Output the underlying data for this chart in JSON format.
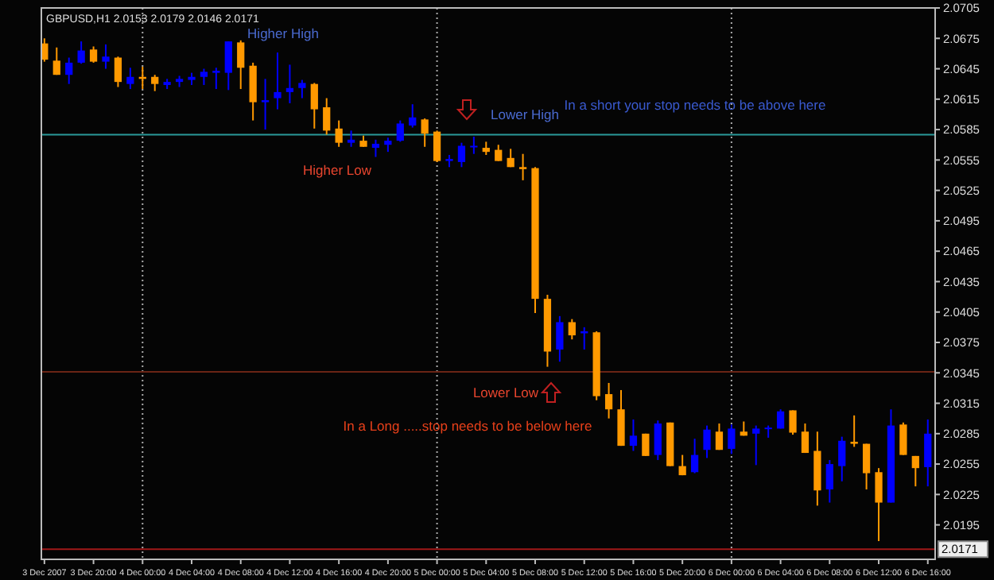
{
  "chart_data": {
    "type": "candlestick",
    "title": "GBPUSD,H1 2.0153 2.0179 2.0146 2.0171",
    "x": [
      "2007-12-03T16:00",
      "2007-12-03T17:00",
      "2007-12-03T18:00",
      "2007-12-03T19:00",
      "2007-12-03T20:00",
      "2007-12-03T21:00",
      "2007-12-03T22:00",
      "2007-12-03T23:00",
      "2007-12-04T00:00",
      "2007-12-04T01:00",
      "2007-12-04T02:00",
      "2007-12-04T03:00",
      "2007-12-04T04:00",
      "2007-12-04T05:00",
      "2007-12-04T06:00",
      "2007-12-04T07:00",
      "2007-12-04T08:00",
      "2007-12-04T09:00",
      "2007-12-04T10:00",
      "2007-12-04T11:00",
      "2007-12-04T12:00",
      "2007-12-04T13:00",
      "2007-12-04T14:00",
      "2007-12-04T15:00",
      "2007-12-04T16:00",
      "2007-12-04T17:00",
      "2007-12-04T18:00",
      "2007-12-04T19:00",
      "2007-12-04T20:00",
      "2007-12-04T21:00",
      "2007-12-04T22:00",
      "2007-12-04T23:00",
      "2007-12-05T00:00",
      "2007-12-05T01:00",
      "2007-12-05T02:00",
      "2007-12-05T03:00",
      "2007-12-05T04:00",
      "2007-12-05T05:00",
      "2007-12-05T06:00",
      "2007-12-05T07:00",
      "2007-12-05T08:00",
      "2007-12-05T09:00",
      "2007-12-05T10:00",
      "2007-12-05T11:00",
      "2007-12-05T12:00",
      "2007-12-05T13:00",
      "2007-12-05T14:00",
      "2007-12-05T15:00",
      "2007-12-05T16:00",
      "2007-12-05T17:00",
      "2007-12-05T18:00",
      "2007-12-05T19:00",
      "2007-12-05T20:00",
      "2007-12-05T21:00",
      "2007-12-05T22:00",
      "2007-12-05T23:00",
      "2007-12-06T00:00",
      "2007-12-06T01:00",
      "2007-12-06T02:00",
      "2007-12-06T03:00",
      "2007-12-06T04:00",
      "2007-12-06T05:00",
      "2007-12-06T06:00",
      "2007-12-06T07:00",
      "2007-12-06T08:00",
      "2007-12-06T09:00",
      "2007-12-06T10:00",
      "2007-12-06T11:00",
      "2007-12-06T12:00",
      "2007-12-06T13:00",
      "2007-12-06T14:00",
      "2007-12-06T15:00",
      "2007-12-06T16:00"
    ],
    "ohlc": [
      [
        2.067,
        2.0675,
        2.0652,
        2.0654
      ],
      [
        2.0653,
        2.0666,
        2.0639,
        2.0639
      ],
      [
        2.0639,
        2.0656,
        2.063,
        2.0651
      ],
      [
        2.0651,
        2.0672,
        2.065,
        2.0663
      ],
      [
        2.0664,
        2.0667,
        2.0651,
        2.0652
      ],
      [
        2.0652,
        2.0669,
        2.0645,
        2.0657
      ],
      [
        2.0656,
        2.0657,
        2.0627,
        2.0632
      ],
      [
        2.063,
        2.0646,
        2.0625,
        2.0637
      ],
      [
        2.0637,
        2.0647,
        2.0625,
        2.0635
      ],
      [
        2.0637,
        2.0639,
        2.0623,
        2.063
      ],
      [
        2.0629,
        2.0635,
        2.0625,
        2.0632
      ],
      [
        2.0632,
        2.0638,
        2.0627,
        2.0635
      ],
      [
        2.0634,
        2.0641,
        2.0629,
        2.0637
      ],
      [
        2.0637,
        2.0645,
        2.0629,
        2.0642
      ],
      [
        2.0641,
        2.0646,
        2.0625,
        2.0643
      ],
      [
        2.0641,
        2.0672,
        2.0624,
        2.0672
      ],
      [
        2.0671,
        2.0673,
        2.0625,
        2.0646
      ],
      [
        2.0648,
        2.0651,
        2.0594,
        2.0612
      ],
      [
        2.0612,
        2.0635,
        2.0585,
        2.0614
      ],
      [
        2.0616,
        2.0661,
        2.0605,
        2.0622
      ],
      [
        2.0622,
        2.0649,
        2.0611,
        2.0626
      ],
      [
        2.0626,
        2.0634,
        2.0616,
        2.0631
      ],
      [
        2.063,
        2.0631,
        2.0586,
        2.0605
      ],
      [
        2.0607,
        2.0616,
        2.058,
        2.0584
      ],
      [
        2.0586,
        2.0594,
        2.0568,
        2.0572
      ],
      [
        2.0572,
        2.0584,
        2.0568,
        2.0575
      ],
      [
        2.0574,
        2.0579,
        2.0568,
        2.0568
      ],
      [
        2.0567,
        2.0575,
        2.0558,
        2.0571
      ],
      [
        2.057,
        2.0577,
        2.0563,
        2.0574
      ],
      [
        2.0574,
        2.0594,
        2.0573,
        2.0591
      ],
      [
        2.0589,
        2.061,
        2.0587,
        2.0597
      ],
      [
        2.0595,
        2.0596,
        2.0568,
        2.0581
      ],
      [
        2.0583,
        2.0584,
        2.0553,
        2.0554
      ],
      [
        2.0554,
        2.056,
        2.0548,
        2.0556
      ],
      [
        2.0553,
        2.0572,
        2.0548,
        2.0569
      ],
      [
        2.0568,
        2.0578,
        2.0561,
        2.0569
      ],
      [
        2.0567,
        2.0573,
        2.056,
        2.0563
      ],
      [
        2.0565,
        2.057,
        2.0554,
        2.0554
      ],
      [
        2.0557,
        2.0566,
        2.0548,
        2.0548
      ],
      [
        2.0548,
        2.0561,
        2.0535,
        2.0546
      ],
      [
        2.0547,
        2.0548,
        2.0404,
        2.0418
      ],
      [
        2.0418,
        2.0422,
        2.0351,
        2.0366
      ],
      [
        2.0368,
        2.0401,
        2.0356,
        2.0395
      ],
      [
        2.0395,
        2.0398,
        2.0378,
        2.0382
      ],
      [
        2.0384,
        2.039,
        2.0368,
        2.0386
      ],
      [
        2.0385,
        2.0386,
        2.0318,
        2.0322
      ],
      [
        2.0324,
        2.0335,
        2.03,
        2.0309
      ],
      [
        2.0309,
        2.0328,
        2.0273,
        2.0273
      ],
      [
        2.0273,
        2.0299,
        2.0268,
        2.0283
      ],
      [
        2.0285,
        2.0285,
        2.0263,
        2.0263
      ],
      [
        2.0264,
        2.0298,
        2.0259,
        2.0295
      ],
      [
        2.0296,
        2.0296,
        2.0253,
        2.0253
      ],
      [
        2.0253,
        2.0264,
        2.0244,
        2.0244
      ],
      [
        2.0247,
        2.028,
        2.0246,
        2.0264
      ],
      [
        2.0269,
        2.0293,
        2.0261,
        2.0289
      ],
      [
        2.0287,
        2.0295,
        2.0269,
        2.0269
      ],
      [
        2.027,
        2.0294,
        2.0265,
        2.029
      ],
      [
        2.0287,
        2.0297,
        2.0283,
        2.0283
      ],
      [
        2.0285,
        2.0293,
        2.0254,
        2.029
      ],
      [
        2.029,
        2.0293,
        2.0281,
        2.0291
      ],
      [
        2.029,
        2.0309,
        2.029,
        2.0307
      ],
      [
        2.0308,
        2.0308,
        2.0284,
        2.0286
      ],
      [
        2.0287,
        2.0295,
        2.0266,
        2.0266
      ],
      [
        2.0268,
        2.0287,
        2.0214,
        2.0229
      ],
      [
        2.023,
        2.0259,
        2.0217,
        2.0255
      ],
      [
        2.0253,
        2.0282,
        2.0238,
        2.0278
      ],
      [
        2.0277,
        2.0303,
        2.0272,
        2.0275
      ],
      [
        2.0275,
        2.0275,
        2.023,
        2.0246
      ],
      [
        2.0247,
        2.0251,
        2.0179,
        2.0217
      ],
      [
        2.0217,
        2.0309,
        2.0217,
        2.0293
      ],
      [
        2.0294,
        2.0296,
        2.0264,
        2.0264
      ],
      [
        2.0263,
        2.0263,
        2.0233,
        2.0251
      ],
      [
        2.0252,
        2.0299,
        2.0233,
        2.0285
      ]
    ],
    "colors": [
      "#ff9900",
      "#ff9900",
      "#0000ff",
      "#0000ff",
      "#ff9900",
      "#0000ff",
      "#ff9900",
      "#0000ff",
      "#ff9900",
      "#ff9900",
      "#0000ff",
      "#0000ff",
      "#0000ff",
      "#0000ff",
      "#0000ff",
      "#0000ff",
      "#ff9900",
      "#ff9900",
      "#0000ff",
      "#0000ff",
      "#0000ff",
      "#0000ff",
      "#ff9900",
      "#ff9900",
      "#ff9900",
      "#0000ff",
      "#ff9900",
      "#0000ff",
      "#0000ff",
      "#0000ff",
      "#0000ff",
      "#ff9900",
      "#ff9900",
      "#0000ff",
      "#0000ff",
      "#0000ff",
      "#ff9900",
      "#ff9900",
      "#ff9900",
      "#ff9900",
      "#ff9900",
      "#ff9900",
      "#0000ff",
      "#ff9900",
      "#0000ff",
      "#ff9900",
      "#ff9900",
      "#ff9900",
      "#0000ff",
      "#ff9900",
      "#0000ff",
      "#ff9900",
      "#ff9900",
      "#0000ff",
      "#0000ff",
      "#ff9900",
      "#0000ff",
      "#ff9900",
      "#0000ff",
      "#0000ff",
      "#0000ff",
      "#ff9900",
      "#ff9900",
      "#ff9900",
      "#0000ff",
      "#0000ff",
      "#ff9900",
      "#ff9900",
      "#ff9900",
      "#0000ff",
      "#ff9900",
      "#ff9900",
      "#0000ff"
    ],
    "xlim": [
      "2007-12-03T15:45",
      "2007-12-06T16:36"
    ],
    "xticks": [
      {
        "value": "2007-12-03T16:00",
        "label": "3 Dec 2007"
      },
      {
        "value": "2007-12-03T20:00",
        "label": "3 Dec 20:00"
      },
      {
        "value": "2007-12-04T00:00",
        "label": "4 Dec 00:00"
      },
      {
        "value": "2007-12-04T04:00",
        "label": "4 Dec 04:00"
      },
      {
        "value": "2007-12-04T08:00",
        "label": "4 Dec 08:00"
      },
      {
        "value": "2007-12-04T12:00",
        "label": "4 Dec 12:00"
      },
      {
        "value": "2007-12-04T16:00",
        "label": "4 Dec 16:00"
      },
      {
        "value": "2007-12-04T20:00",
        "label": "4 Dec 20:00"
      },
      {
        "value": "2007-12-05T00:00",
        "label": "5 Dec 00:00"
      },
      {
        "value": "2007-12-05T04:00",
        "label": "5 Dec 04:00"
      },
      {
        "value": "2007-12-05T08:00",
        "label": "5 Dec 08:00"
      },
      {
        "value": "2007-12-05T12:00",
        "label": "5 Dec 12:00"
      },
      {
        "value": "2007-12-05T16:00",
        "label": "5 Dec 16:00"
      },
      {
        "value": "2007-12-05T20:00",
        "label": "5 Dec 20:00"
      },
      {
        "value": "2007-12-06T00:00",
        "label": "6 Dec 00:00"
      },
      {
        "value": "2007-12-06T04:00",
        "label": "6 Dec 04:00"
      },
      {
        "value": "2007-12-06T08:00",
        "label": "6 Dec 08:00"
      },
      {
        "value": "2007-12-06T12:00",
        "label": "6 Dec 12:00"
      },
      {
        "value": "2007-12-06T16:00",
        "label": "6 Dec 16:00"
      }
    ],
    "ylim": [
      2.0161,
      2.0705
    ],
    "yticks": [
      2.0705,
      2.0675,
      2.0645,
      2.0615,
      2.0585,
      2.0555,
      2.0525,
      2.0495,
      2.0465,
      2.0435,
      2.0405,
      2.0375,
      2.0345,
      2.0315,
      2.0285,
      2.0255,
      2.0225,
      2.0195
    ],
    "ref_lines": [
      {
        "axis": "x",
        "value": "2007-12-04T00:00",
        "color": "#aaaaaa",
        "line_style": "dotted"
      },
      {
        "axis": "x",
        "value": "2007-12-05T00:00",
        "color": "#aaaaaa",
        "line_style": "dotted"
      },
      {
        "axis": "x",
        "value": "2007-12-06T00:00",
        "color": "#aaaaaa",
        "line_style": "dotted"
      },
      {
        "axis": "y",
        "value": 2.058,
        "color": "#2a9a9a",
        "line_style": "solid"
      },
      {
        "axis": "y",
        "value": 2.0346,
        "color": "#6a2415",
        "line_style": "solid"
      },
      {
        "axis": "y",
        "value": 2.0171,
        "label": "2.0171",
        "color": "#a01818",
        "line_style": "solid"
      }
    ],
    "annotations": [
      "Higher High",
      "Higher Low",
      "Lower High",
      "In a short your stop needs to be above here",
      "Lower Low",
      "In a Long .....stop needs to be below here"
    ],
    "grid": false
  }
}
